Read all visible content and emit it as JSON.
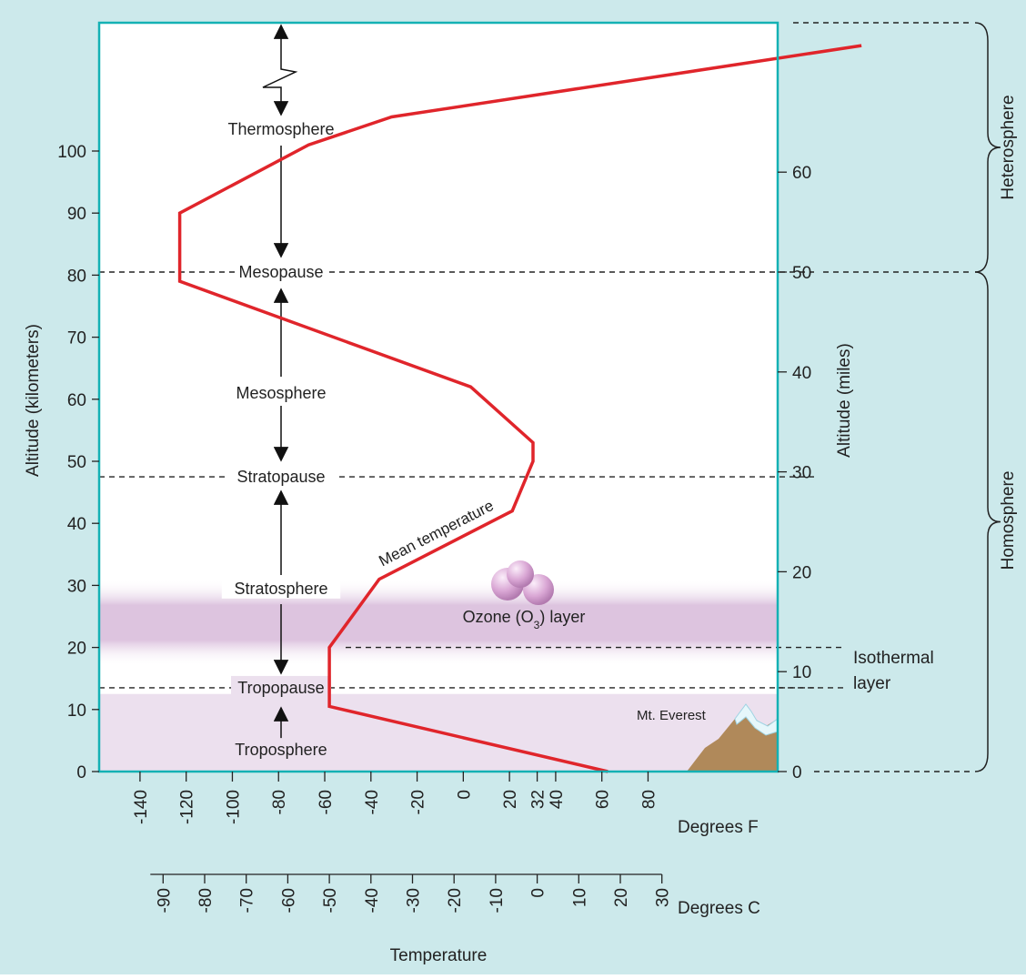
{
  "colors": {
    "background": "#cce9eb",
    "plot_bg": "#ffffff",
    "plot_border": "#14b1b4",
    "curve": "#e0252b",
    "band": "#ece0ee",
    "ozone": "#d9a6d4",
    "mountain": "#b0895a",
    "snow": "#e6f7fb"
  },
  "chart_data": {
    "type": "line",
    "ylabel_left": "Altitude (kilometers)",
    "ylabel_right": "Altitude (miles)",
    "xlabel": "Temperature",
    "ylim_km": [
      0,
      122
    ],
    "xlim_c": [
      -112,
      80
    ],
    "y_ticks_km": [
      0,
      10,
      20,
      30,
      40,
      50,
      60,
      70,
      80,
      90,
      100
    ],
    "y_ticks_miles": [
      0,
      10,
      20,
      30,
      40,
      50,
      60
    ],
    "x_ticks_f": [
      "-140",
      "-120",
      "-100",
      "-80",
      "-60",
      "-40",
      "-20",
      "0",
      "20",
      "32",
      "40",
      "60",
      "80"
    ],
    "x_ticks_c": [
      "-90",
      "-80",
      "-70",
      "-60",
      "-50",
      "-40",
      "-30",
      "-20",
      "-10",
      "0",
      "10",
      "20",
      "30"
    ],
    "f_unit_label": "Degrees F",
    "c_unit_label": "Degrees C",
    "series": [
      {
        "x": [
          17,
          -50,
          -50,
          -38,
          -6,
          -1,
          -1,
          -16,
          -86,
          -86,
          -55,
          -35,
          78
        ],
        "y": [
          0,
          10.5,
          20,
          31,
          42,
          50,
          53,
          62,
          79,
          90,
          101,
          105.5,
          117
        ]
      }
    ],
    "curve_label": "Mean temperature",
    "layers": [
      {
        "name": "Thermosphere",
        "y_km": 103.5
      },
      {
        "name": "Mesopause",
        "y_km": 80.5
      },
      {
        "name": "Mesosphere",
        "y_km": 61
      },
      {
        "name": "Stratopause",
        "y_km": 47.5
      },
      {
        "name": "Stratosphere",
        "y_km": 29.5
      },
      {
        "name": "Tropopause",
        "y_km": 13.5
      },
      {
        "name": "Troposphere",
        "y_km": 3.5
      }
    ],
    "boundaries_km": [
      80.5,
      47.5,
      13.5
    ],
    "isothermal_km": [
      20,
      13.5
    ],
    "isothermal_label": [
      "Isothermal",
      "layer"
    ],
    "ozone_label": "Ozone (O3) layer",
    "ozone_band_km": [
      17,
      31
    ],
    "troposphere_band_km": [
      0,
      12.5
    ],
    "everest_label": "Mt. Everest",
    "regions": [
      {
        "name": "Heterosphere",
        "from_km": 80.5,
        "to_km": 121
      },
      {
        "name": "Homosphere",
        "from_km": 0,
        "to_km": 80.5
      }
    ]
  }
}
